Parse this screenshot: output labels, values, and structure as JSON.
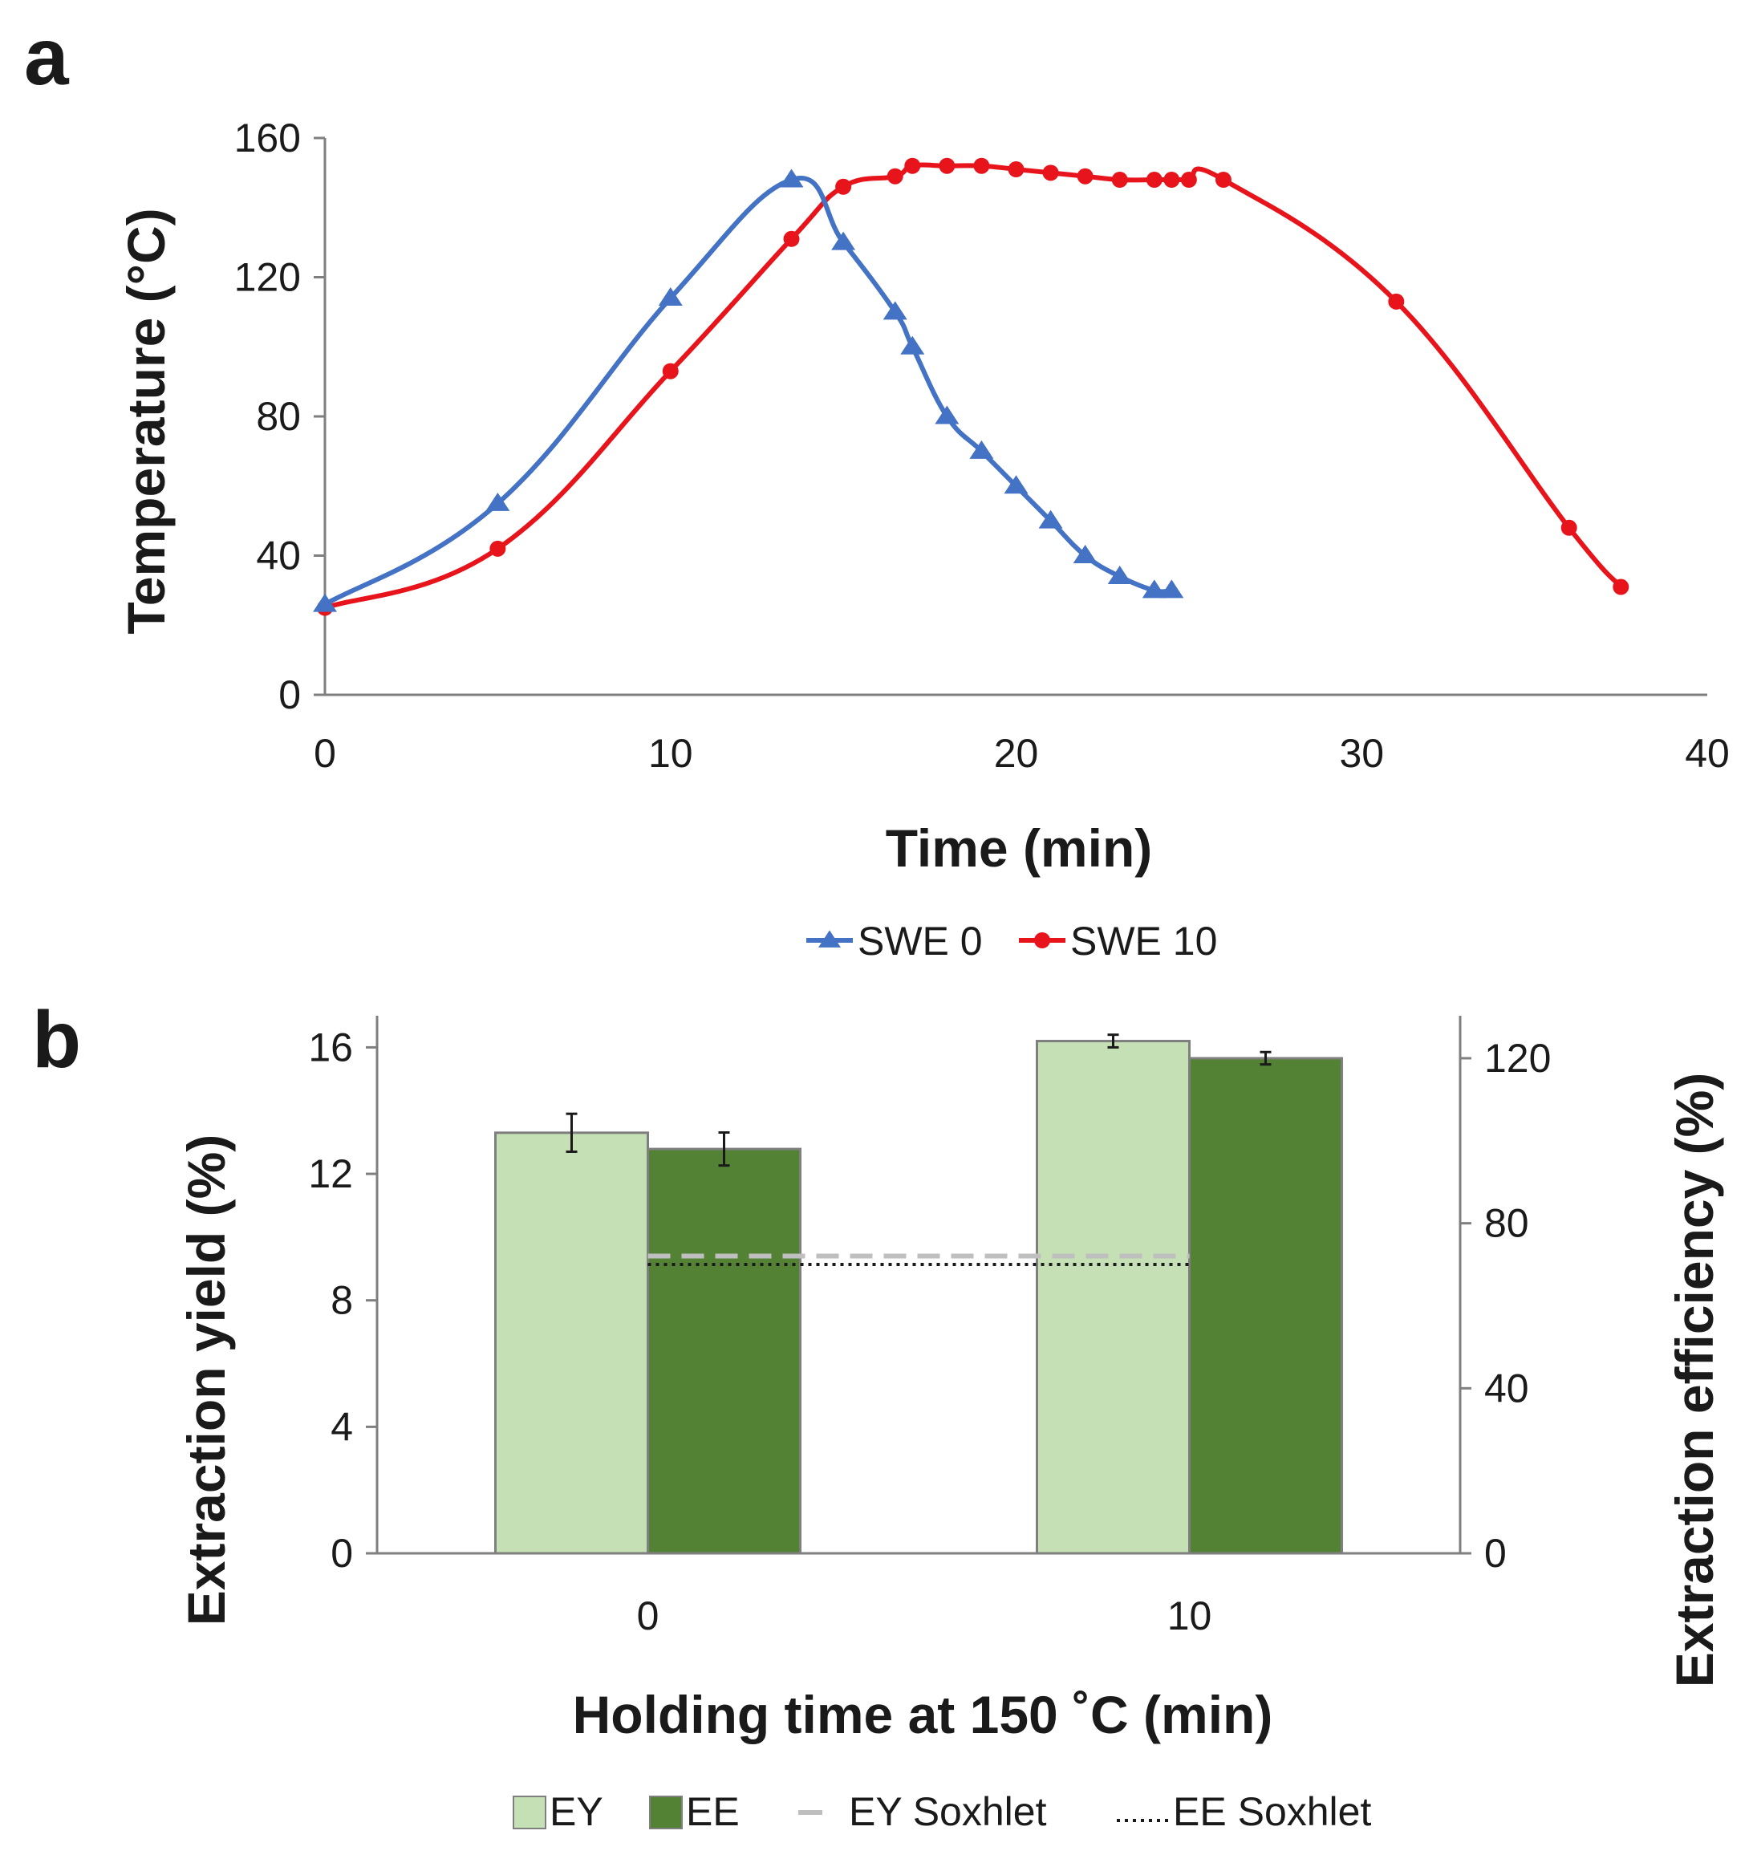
{
  "chart_data": [
    {
      "panel": "a",
      "type": "line",
      "title": "",
      "xlabel": "Time (min)",
      "ylabel": "Temperature (°C)",
      "xlim": [
        0,
        40
      ],
      "ylim": [
        0,
        160
      ],
      "xticks": [
        "0",
        "10",
        "20",
        "30",
        "40"
      ],
      "yticks": [
        "0",
        "40",
        "80",
        "120",
        "160"
      ],
      "grid": false,
      "legend_position": "bottom",
      "series": [
        {
          "name": "SWE 0",
          "color": "#4472C4",
          "marker": "triangle",
          "x": [
            0,
            5,
            10,
            13.5,
            15,
            16.5,
            17,
            18,
            19,
            20,
            21,
            22,
            23,
            24,
            24.5
          ],
          "y": [
            26,
            55,
            114,
            148,
            130,
            110,
            100,
            80,
            70,
            60,
            50,
            40,
            34,
            30,
            30
          ]
        },
        {
          "name": "SWE 10",
          "color": "#E8141C",
          "marker": "circle",
          "x": [
            0,
            5,
            10,
            13.5,
            15,
            16.5,
            17,
            18,
            19,
            20,
            21,
            22,
            23,
            24,
            24.5,
            25,
            26,
            31,
            36,
            37.5
          ],
          "y": [
            25,
            42,
            93,
            131,
            146,
            149,
            152,
            152,
            152,
            151,
            150,
            149,
            148,
            148,
            148,
            148,
            148,
            113,
            48,
            31
          ]
        }
      ]
    },
    {
      "panel": "b",
      "type": "bar",
      "title": "",
      "xlabel": "Holding time at 150 ˚C (min)",
      "ylabel": "Extraction yield (%)",
      "y2label": "Extraction efficiency (%)",
      "categories": [
        "0",
        "10"
      ],
      "ylim": [
        0,
        17
      ],
      "yticks": [
        "0",
        "4",
        "8",
        "12",
        "16"
      ],
      "y2lim": [
        0,
        130.3
      ],
      "y2ticks": [
        "0",
        "40",
        "80",
        "120"
      ],
      "grid": false,
      "legend_position": "bottom",
      "series": [
        {
          "name": "EY",
          "axis": "left",
          "color": "#C5E0B4",
          "values": [
            13.3,
            16.2
          ],
          "errors": [
            0.6,
            0.2
          ]
        },
        {
          "name": "EE",
          "axis": "right",
          "color": "#548235",
          "values": [
            98,
            120
          ],
          "errors": [
            4,
            1.5
          ]
        }
      ],
      "reference_lines": [
        {
          "name": "EY Soxhlet",
          "axis": "left",
          "value": 9.4,
          "style": "dashed",
          "color": "#BFBFBF"
        },
        {
          "name": "EE Soxhlet",
          "axis": "right",
          "value": 70,
          "style": "dotted",
          "color": "#1a1a1a"
        }
      ]
    }
  ]
}
